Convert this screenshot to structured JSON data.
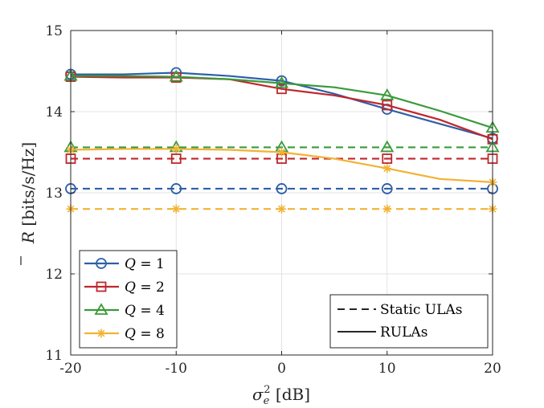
{
  "chart_data": {
    "type": "line",
    "xlabel": "σ_e^2 [dB]",
    "xlabel_parts": {
      "sym": "σ",
      "sup": "2",
      "sub": "e",
      "unit": " [dB]"
    },
    "ylabel": "R̄ [bits/s/Hz]",
    "ylabel_parts": {
      "sym": "R",
      "unit": " [bits/s/Hz]"
    },
    "xlim": [
      -20,
      20
    ],
    "ylim": [
      11,
      15
    ],
    "xticks": [
      -20,
      -10,
      0,
      10,
      20
    ],
    "xtick_labels": [
      "-20",
      "-10",
      "0",
      "10",
      "20"
    ],
    "yticks": [
      11,
      12,
      13,
      14,
      15
    ],
    "ytick_labels": [
      "11",
      "12",
      "13",
      "14",
      "15"
    ],
    "grid": true,
    "legend_placement": "bottom-left",
    "style_legend_placement": "bottom-right",
    "colors": {
      "Q1": "#2f5fa8",
      "Q2": "#c0272d",
      "Q4": "#3a9a3a",
      "Q8": "#f2b233",
      "grid": "#e3e3e3",
      "axes": "#262626"
    },
    "series": [
      {
        "name": "Q = 1",
        "key": "Q1",
        "style": "solid",
        "marker": "circle",
        "x": [
          -20,
          -15,
          -10,
          -5,
          0,
          5,
          10,
          15,
          20
        ],
        "y": [
          14.46,
          14.46,
          14.48,
          14.44,
          14.38,
          14.22,
          14.03,
          13.85,
          13.67
        ],
        "marker_x": [
          -20,
          -10,
          0,
          10,
          20
        ]
      },
      {
        "name": "Q = 1",
        "key": "Q1",
        "style": "dashed",
        "marker": "circle",
        "x": [
          -20,
          20
        ],
        "y": [
          13.05,
          13.05
        ],
        "marker_x": [
          -20,
          -10,
          0,
          10,
          20
        ]
      },
      {
        "name": "Q = 2",
        "key": "Q2",
        "style": "solid",
        "marker": "square",
        "x": [
          -20,
          -15,
          -10,
          -5,
          0,
          5,
          10,
          15,
          20
        ],
        "y": [
          14.43,
          14.42,
          14.42,
          14.4,
          14.28,
          14.2,
          14.08,
          13.9,
          13.66
        ],
        "marker_x": [
          -20,
          -10,
          0,
          10,
          20
        ]
      },
      {
        "name": "Q = 2",
        "key": "Q2",
        "style": "dashed",
        "marker": "square",
        "x": [
          -20,
          20
        ],
        "y": [
          13.42,
          13.42
        ],
        "marker_x": [
          -20,
          -10,
          0,
          10,
          20
        ]
      },
      {
        "name": "Q = 4",
        "key": "Q4",
        "style": "solid",
        "marker": "triangle",
        "x": [
          -20,
          -15,
          -10,
          -5,
          0,
          5,
          10,
          15,
          20
        ],
        "y": [
          14.44,
          14.44,
          14.43,
          14.4,
          14.35,
          14.3,
          14.2,
          14.01,
          13.8
        ],
        "marker_x": [
          -20,
          -10,
          0,
          10,
          20
        ]
      },
      {
        "name": "Q = 4",
        "key": "Q4",
        "style": "dashed",
        "marker": "triangle",
        "x": [
          -20,
          20
        ],
        "y": [
          13.56,
          13.56
        ],
        "marker_x": [
          -20,
          -10,
          0,
          10,
          20
        ]
      },
      {
        "name": "Q = 8",
        "key": "Q8",
        "style": "solid",
        "marker": "asterisk",
        "x": [
          -20,
          -15,
          -10,
          -5,
          0,
          5,
          10,
          15,
          20
        ],
        "y": [
          13.53,
          13.54,
          13.54,
          13.53,
          13.5,
          13.42,
          13.3,
          13.17,
          13.13
        ],
        "marker_x": [
          -20,
          -10,
          0,
          10,
          20
        ]
      },
      {
        "name": "Q = 8",
        "key": "Q8",
        "style": "dashed",
        "marker": "asterisk",
        "x": [
          -20,
          20
        ],
        "y": [
          12.8,
          12.8
        ],
        "marker_x": [
          -20,
          -10,
          0,
          10,
          20
        ]
      }
    ],
    "legend": {
      "series": [
        {
          "key": "Q1",
          "marker": "circle",
          "label": "Q = 1",
          "q": "Q",
          "eq": " = 1"
        },
        {
          "key": "Q2",
          "marker": "square",
          "label": "Q = 2",
          "q": "Q",
          "eq": " = 2"
        },
        {
          "key": "Q4",
          "marker": "triangle",
          "label": "Q = 4",
          "q": "Q",
          "eq": " = 4"
        },
        {
          "key": "Q8",
          "marker": "asterisk",
          "label": "Q = 8",
          "q": "Q",
          "eq": " = 8"
        }
      ],
      "styles": [
        {
          "style": "dashed",
          "label": "Static ULAs"
        },
        {
          "style": "solid",
          "label": "RULAs"
        }
      ]
    }
  }
}
